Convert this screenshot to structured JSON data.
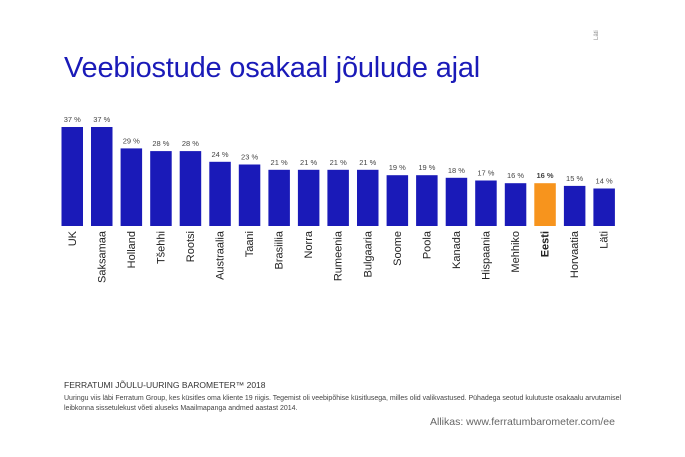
{
  "title": "Veebiostude osakaal jõulude ajal",
  "side_tag": "Läti",
  "footer": {
    "heading": "FERRATUMI JÕULU-UURING BAROMETER™ 2018",
    "note": "Uuringu viis läbi Ferratum Group, kes küsitles oma kliente 19 riigis. Tegemist oli veebipõhise küsitlusega, milles olid valikvastused. Pühadega seotud kulutuste osakaalu arvutamisel leibkonna sissetulekust võeti aluseks Maailmapanga andmed aastast 2014.",
    "source": "Allikas:  www.ferratumbarometer.com/ee"
  },
  "colors": {
    "bar": "#1a1ab8",
    "highlight": "#f7941d",
    "title": "#1a1ab8"
  },
  "chart_data": {
    "type": "bar",
    "title": "Veebiostude osakaal jõulude ajal",
    "categories": [
      "UK",
      "Saksamaa",
      "Holland",
      "Tšehhi",
      "Rootsi",
      "Austraalia",
      "Taani",
      "Brasiilia",
      "Norra",
      "Rumeenia",
      "Bulgaaria",
      "Soome",
      "Poola",
      "Kanada",
      "Hispaania",
      "Mehhiko",
      "Eesti",
      "Horvaatia",
      "Läti"
    ],
    "values": [
      37,
      37,
      29,
      28,
      28,
      24,
      23,
      21,
      21,
      21,
      21,
      19,
      19,
      18,
      17,
      16,
      16,
      15,
      14
    ],
    "labels": [
      "37 %",
      "37 %",
      "29 %",
      "28 %",
      "28 %",
      "24 %",
      "23 %",
      "21 %",
      "21 %",
      "21 %",
      "21 %",
      "19 %",
      "19 %",
      "18 %",
      "17 %",
      "16 %",
      "16 %",
      "15 %",
      "14 %"
    ],
    "highlight_category": "Eesti",
    "unit": "%",
    "ylim": [
      0,
      37
    ],
    "grid": false,
    "legend": "none"
  }
}
